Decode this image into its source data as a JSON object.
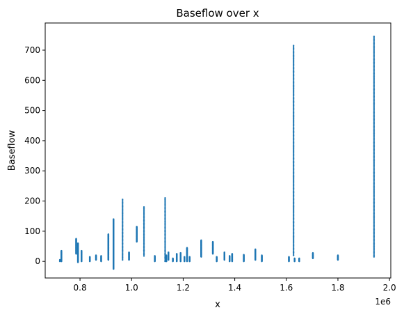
{
  "chart_data": {
    "type": "scatter",
    "title": "Baseflow over x",
    "xlabel": "x",
    "ylabel": "Baseflow",
    "x_offset_label": "1e6",
    "xlim": [
      0.665,
      2.005
    ],
    "ylim": [
      -55,
      790
    ],
    "x_ticks": [
      0.8,
      1.0,
      1.2,
      1.4,
      1.6,
      1.8,
      2.0
    ],
    "x_tick_labels": [
      "0.8",
      "1.0",
      "1.2",
      "1.4",
      "1.6",
      "1.8",
      "2.0"
    ],
    "y_ticks": [
      0,
      100,
      200,
      300,
      400,
      500,
      600,
      700
    ],
    "y_tick_labels": [
      "0",
      "100",
      "200",
      "300",
      "400",
      "500",
      "600",
      "700"
    ],
    "grid": false,
    "marker_color": "#1f77b4",
    "x_units_multiplier": 1000000,
    "stations": [
      {
        "x": 0.722,
        "ymin": 0,
        "ymax": 5
      },
      {
        "x": 0.728,
        "ymin": 0,
        "ymax": 35
      },
      {
        "x": 0.785,
        "ymin": 25,
        "ymax": 75
      },
      {
        "x": 0.792,
        "ymin": -3,
        "ymax": 60
      },
      {
        "x": 0.806,
        "ymin": 0,
        "ymax": 35
      },
      {
        "x": 0.838,
        "ymin": 0,
        "ymax": 15
      },
      {
        "x": 0.862,
        "ymin": 5,
        "ymax": 20
      },
      {
        "x": 0.882,
        "ymin": 0,
        "ymax": 18
      },
      {
        "x": 0.91,
        "ymin": 5,
        "ymax": 90
      },
      {
        "x": 0.93,
        "ymin": -25,
        "ymax": 140
      },
      {
        "x": 0.965,
        "ymin": 5,
        "ymax": 205,
        "sparse": true
      },
      {
        "x": 0.99,
        "ymin": 5,
        "ymax": 30
      },
      {
        "x": 1.02,
        "ymin": 65,
        "ymax": 115
      },
      {
        "x": 1.048,
        "ymin": 18,
        "ymax": 180,
        "sparse": true
      },
      {
        "x": 1.09,
        "ymin": 0,
        "ymax": 18
      },
      {
        "x": 1.13,
        "ymin": 0,
        "ymax": 210,
        "sparse": true
      },
      {
        "x": 1.135,
        "ymin": 0,
        "ymax": 20
      },
      {
        "x": 1.143,
        "ymin": 5,
        "ymax": 30
      },
      {
        "x": 1.16,
        "ymin": 0,
        "ymax": 10
      },
      {
        "x": 1.175,
        "ymin": 0,
        "ymax": 25
      },
      {
        "x": 1.19,
        "ymin": 0,
        "ymax": 28
      },
      {
        "x": 1.205,
        "ymin": 0,
        "ymax": 15
      },
      {
        "x": 1.215,
        "ymin": 0,
        "ymax": 45
      },
      {
        "x": 1.225,
        "ymin": 0,
        "ymax": 15
      },
      {
        "x": 1.27,
        "ymin": 15,
        "ymax": 70
      },
      {
        "x": 1.315,
        "ymin": 25,
        "ymax": 65
      },
      {
        "x": 1.33,
        "ymin": 0,
        "ymax": 15
      },
      {
        "x": 1.36,
        "ymin": 5,
        "ymax": 30
      },
      {
        "x": 1.38,
        "ymin": 0,
        "ymax": 18
      },
      {
        "x": 1.39,
        "ymin": 0,
        "ymax": 25
      },
      {
        "x": 1.435,
        "ymin": 0,
        "ymax": 22
      },
      {
        "x": 1.48,
        "ymin": 5,
        "ymax": 40
      },
      {
        "x": 1.505,
        "ymin": 0,
        "ymax": 20
      },
      {
        "x": 1.61,
        "ymin": 0,
        "ymax": 15
      },
      {
        "x": 1.628,
        "ymin": 20,
        "ymax": 715,
        "sparse": true
      },
      {
        "x": 1.632,
        "ymin": 0,
        "ymax": 10
      },
      {
        "x": 1.65,
        "ymin": 0,
        "ymax": 10
      },
      {
        "x": 1.703,
        "ymin": 10,
        "ymax": 28
      },
      {
        "x": 1.8,
        "ymin": 5,
        "ymax": 20
      },
      {
        "x": 1.94,
        "ymin": 15,
        "ymax": 745,
        "sparse": true
      }
    ]
  }
}
